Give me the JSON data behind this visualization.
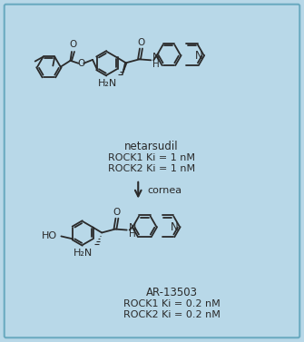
{
  "background_color": "#b8d8e8",
  "border_color": "#6aaac0",
  "fig_width": 3.35,
  "fig_height": 3.77,
  "bond_color": "#2a2a2a",
  "text_color": "#2a2a2a",
  "label1_name": "netarsudil",
  "label1_rock1": "ROCK1 Ki = 1 nM",
  "label1_rock2": "ROCK2 Ki = 1 nM",
  "label2_name": "AR-13503",
  "label2_rock1": "ROCK1 Ki = 0.2 nM",
  "label2_rock2": "ROCK2 Ki = 0.2 nM",
  "arrow_label": "cornea",
  "font_size_name": 8.5,
  "font_size_ki": 8.0,
  "font_size_arrow": 8.0,
  "font_size_atom": 7.5
}
